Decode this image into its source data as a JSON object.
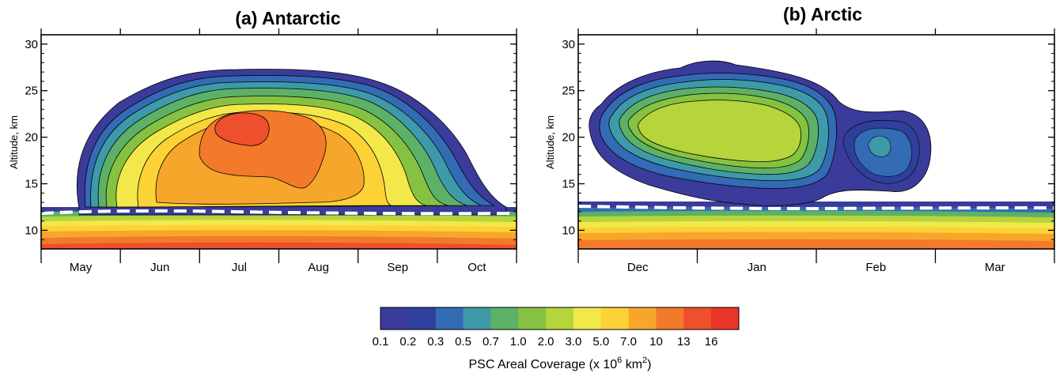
{
  "chart_data": [
    {
      "type": "contour",
      "title": "(a) Antarctic",
      "ylabel": "Altitude, km",
      "ylim": [
        8,
        31
      ],
      "yticks": [
        "10",
        "15",
        "20",
        "25",
        "30"
      ],
      "xticks": [
        "May",
        "Jun",
        "Jul",
        "Aug",
        "Sep",
        "Oct"
      ],
      "dashed_line_altitude_km": 12.2,
      "levels": [
        0.1,
        0.2,
        0.3,
        0.5,
        0.7,
        1.0,
        2.0,
        3.0,
        5.0,
        7.0,
        10,
        13,
        16
      ],
      "regions": [
        {
          "level": 0.1,
          "x_range": [
            "early May",
            "mid Oct"
          ],
          "alt_range_km": [
            12.5,
            27
          ]
        },
        {
          "level": 1.0,
          "x_range": [
            "mid May",
            "late Sep"
          ],
          "alt_range_km": [
            13,
            25
          ]
        },
        {
          "level": 7.0,
          "x_range": [
            "mid Jun",
            "early Sep"
          ],
          "alt_range_km": [
            13.5,
            24
          ]
        },
        {
          "level": 13,
          "x_range": [
            "late Jun",
            "mid Aug"
          ],
          "alt_range_km": [
            16,
            23
          ]
        },
        {
          "level": 16,
          "x_range": [
            "mid Jul",
            "late Jul"
          ],
          "alt_range_km": [
            19.5,
            22
          ]
        }
      ]
    },
    {
      "type": "contour",
      "title": "(b) Arctic",
      "ylabel": "Altitude, km",
      "ylim": [
        8,
        31
      ],
      "yticks": [
        "10",
        "15",
        "20",
        "25",
        "30"
      ],
      "xticks": [
        "Dec",
        "Jan",
        "Feb",
        "Mar"
      ],
      "dashed_line_altitude_km": 12.5,
      "levels": [
        0.1,
        0.2,
        0.3,
        0.5,
        0.7,
        1.0,
        2.0,
        3.0,
        5.0,
        7.0,
        10,
        13,
        16
      ],
      "regions": [
        {
          "level": 0.1,
          "x_range": [
            "late Nov",
            "late Feb"
          ],
          "alt_range_km": [
            13,
            27
          ]
        },
        {
          "level": 1.0,
          "x_range": [
            "early Dec",
            "late Jan"
          ],
          "alt_range_km": [
            16,
            25
          ]
        },
        {
          "level": 2.0,
          "x_range": [
            "mid Dec",
            "mid Jan"
          ],
          "alt_range_km": [
            17.5,
            23.5
          ]
        },
        {
          "level": 0.3,
          "x_range": [
            "early Feb",
            "mid Feb"
          ],
          "alt_range_km": [
            18,
            21
          ]
        }
      ]
    }
  ],
  "colorbar": {
    "title_main": "PSC Areal Coverage (x 10",
    "title_sup1": "6",
    "title_mid": " km",
    "title_sup2": "2",
    "title_end": ")",
    "labels": [
      "0.1",
      "0.2",
      "0.3",
      "0.5",
      "0.7",
      "1.0",
      "2.0",
      "3.0",
      "5.0",
      "7.0",
      "10",
      "13",
      "16"
    ],
    "colors": [
      "#3a3b9a",
      "#2e3f9c",
      "#336bb5",
      "#3e9aa8",
      "#5db166",
      "#86c241",
      "#b6d43c",
      "#f2e84a",
      "#fcd236",
      "#f7a62c",
      "#f27a2a",
      "#ee4f2c",
      "#e8352a"
    ]
  }
}
